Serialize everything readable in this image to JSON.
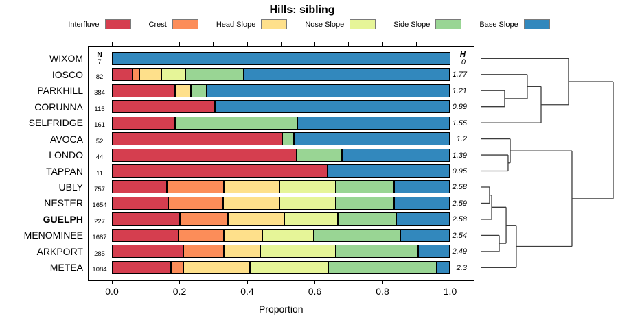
{
  "title": "Hills: sibling",
  "axis": {
    "xlabel": "Proportion",
    "tick_labels": [
      "0.0",
      "0.2",
      "0.4",
      "0.6",
      "0.8",
      "1.0"
    ],
    "tick_values": [
      0,
      0.2,
      0.4,
      0.6,
      0.8,
      1.0
    ],
    "top_minor_ticks": [
      0,
      0.1,
      0.2,
      0.3,
      0.4,
      0.5,
      0.6,
      0.7,
      0.8,
      0.9,
      1.0
    ]
  },
  "columns": {
    "n_header": "N",
    "h_header": "H"
  },
  "chart_data": {
    "type": "bar",
    "stacked": true,
    "orientation": "horizontal",
    "title": "Hills: sibling",
    "xlabel": "Proportion",
    "xlim": [
      0,
      1
    ],
    "categories": [
      "WIXOM",
      "IOSCO",
      "PARKHILL",
      "CORUNNA",
      "SELFRIDGE",
      "AVOCA",
      "LONDO",
      "TAPPAN",
      "UBLY",
      "NESTER",
      "GUELPH",
      "MENOMINEE",
      "ARKPORT",
      "METEA"
    ],
    "bold_categories": [
      "GUELPH"
    ],
    "n_values": [
      7,
      82,
      384,
      115,
      161,
      52,
      44,
      11,
      757,
      1654,
      227,
      1687,
      285,
      1084
    ],
    "h_values": [
      "0",
      "1.77",
      "1.21",
      "0.89",
      "1.55",
      "1.2",
      "1.39",
      "0.95",
      "2.58",
      "2.59",
      "2.58",
      "2.54",
      "2.49",
      "2.3"
    ],
    "series": [
      {
        "name": "Interfluve",
        "color": "#D53E4F",
        "values": [
          0,
          0.061,
          0.187,
          0.305,
          0.186,
          0.503,
          0.546,
          0.638,
          0.163,
          0.166,
          0.2,
          0.197,
          0.211,
          0.175
        ]
      },
      {
        "name": "Crest",
        "color": "#FC8D59",
        "values": [
          0,
          0.02,
          0,
          0,
          0,
          0,
          0,
          0,
          0.167,
          0.163,
          0.144,
          0.134,
          0.119,
          0.037
        ]
      },
      {
        "name": "Head Slope",
        "color": "#FEE08B",
        "values": [
          0,
          0.065,
          0.046,
          0,
          0,
          0,
          0,
          0,
          0.165,
          0.167,
          0.165,
          0.114,
          0.109,
          0.197
        ]
      },
      {
        "name": "Nose Slope",
        "color": "#E6F598",
        "values": [
          0,
          0.071,
          0,
          0,
          0,
          0,
          0,
          0,
          0.166,
          0.165,
          0.16,
          0.152,
          0.222,
          0.23
        ]
      },
      {
        "name": "Side Slope",
        "color": "#99D594",
        "values": [
          0,
          0.173,
          0.047,
          0,
          0.363,
          0.035,
          0.135,
          0,
          0.174,
          0.174,
          0.172,
          0.256,
          0.244,
          0.322
        ]
      },
      {
        "name": "Base Slope",
        "color": "#3288BD",
        "values": [
          1.0,
          0.61,
          0.72,
          0.695,
          0.451,
          0.462,
          0.319,
          0.362,
          0.165,
          0.165,
          0.159,
          0.147,
          0.095,
          0.039
        ]
      }
    ],
    "dendrogram": {
      "merges": [
        {
          "id": "UN",
          "a": "UBLY",
          "b": "NESTER",
          "h": 0.067
        },
        {
          "id": "UNG",
          "a": "UN",
          "b": "GUELPH",
          "h": 0.083
        },
        {
          "id": "MA",
          "a": "MENOMINEE",
          "b": "ARKPORT",
          "h": 0.14
        },
        {
          "id": "PC",
          "a": "PARKHILL",
          "b": "CORUNNA",
          "h": 0.181
        },
        {
          "id": "UNGMA",
          "a": "UNG",
          "b": "MA",
          "h": 0.192
        },
        {
          "id": "LT",
          "a": "LONDO",
          "b": "TAPPAN",
          "h": 0.207
        },
        {
          "id": "ALT",
          "a": "AVOCA",
          "b": "LT",
          "h": 0.223
        },
        {
          "id": "LOW",
          "a": "UNGMA",
          "b": "METEA",
          "h": 0.269
        },
        {
          "id": "IPC",
          "a": "IOSCO",
          "b": "PC",
          "h": 0.352
        },
        {
          "id": "IPCS",
          "a": "IPC",
          "b": "SELFRIDGE",
          "h": 0.456
        },
        {
          "id": "TOP",
          "a": "WIXOM",
          "b": "IPCS",
          "h": 0.663
        },
        {
          "id": "BOT",
          "a": "ALT",
          "b": "LOW",
          "h": 0.689
        },
        {
          "id": "ROOT",
          "a": "TOP",
          "b": "BOT",
          "h": 1.0
        }
      ]
    }
  }
}
